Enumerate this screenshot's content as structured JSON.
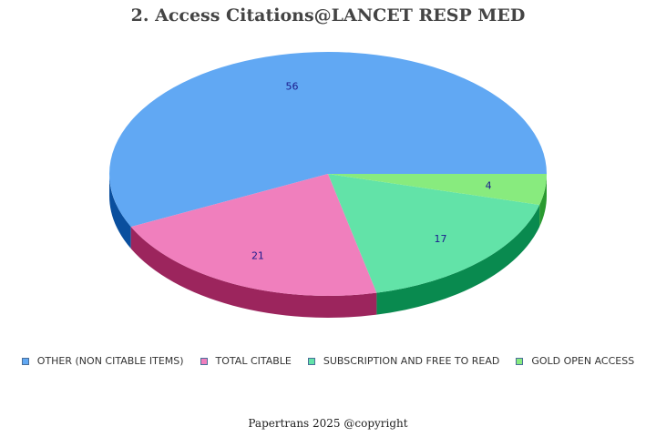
{
  "chart_data": {
    "type": "pie",
    "title": "2. Access Citations@LANCET RESP MED",
    "slices": [
      {
        "name": "OTHER (NON CITABLE ITEMS)",
        "value": 56,
        "label": "56",
        "color": "#61a8f3",
        "side_color": "#0a4f9e"
      },
      {
        "name": "TOTAL CITABLE",
        "value": 21,
        "label": "21",
        "color": "#f07fbd",
        "side_color": "#9c255d"
      },
      {
        "name": "SUBSCRIPTION AND FREE TO READ",
        "value": 17,
        "label": "17",
        "color": "#62e3a8",
        "side_color": "#098a4f"
      },
      {
        "name": "GOLD OPEN ACCESS",
        "value": 4,
        "label": "4",
        "color": "#88eb7e",
        "side_color": "#2a9a30"
      }
    ],
    "legend_position": "bottom",
    "style": "3d-pie"
  },
  "footer": "Papertrans 2025 @copyright"
}
